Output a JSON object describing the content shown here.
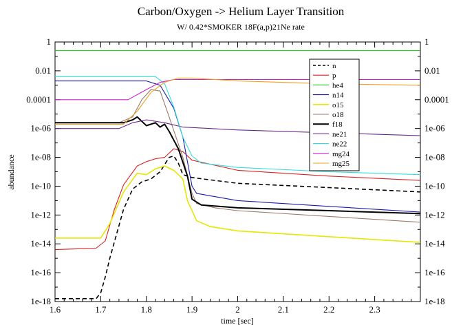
{
  "chart_data": {
    "type": "line",
    "title": "Carbon/Oxygen -> Helium Layer Transition",
    "subtitle": "W/  0.42*SMOKER 18F(a,p)21Ne rate",
    "xlabel": "time [sec]",
    "ylabel": "abundance",
    "xlim": [
      1.6,
      2.4
    ],
    "ylim": [
      1e-18,
      1
    ],
    "yscale": "log",
    "x_ticks": [
      "1.6",
      "1.7",
      "1.8",
      "1.9",
      "2",
      "2.1",
      "2.2",
      "2.3"
    ],
    "y_ticks": [
      "1",
      "0.01",
      "0.0001",
      "1e-06",
      "1e-08",
      "1e-10",
      "1e-12",
      "1e-14",
      "1e-16",
      "1e-18"
    ],
    "right_axis_mirror": true,
    "grid": false,
    "legend_position": "top-right",
    "series": [
      {
        "name": "n",
        "color": "#000000",
        "dash": "6,4",
        "width": 1.6,
        "points": [
          [
            1.6,
            -17.8
          ],
          [
            1.69,
            -17.8
          ],
          [
            1.7,
            -17.4
          ],
          [
            1.71,
            -16.3
          ],
          [
            1.72,
            -15.0
          ],
          [
            1.735,
            -13.3
          ],
          [
            1.75,
            -11.6
          ],
          [
            1.77,
            -10.2
          ],
          [
            1.79,
            -9.7
          ],
          [
            1.81,
            -9.5
          ],
          [
            1.83,
            -9.0
          ],
          [
            1.85,
            -8.0
          ],
          [
            1.86,
            -7.9
          ],
          [
            1.87,
            -8.4
          ],
          [
            1.88,
            -9.2
          ],
          [
            1.9,
            -9.4
          ],
          [
            2.0,
            -9.8
          ],
          [
            2.2,
            -10.1
          ],
          [
            2.4,
            -10.4
          ]
        ]
      },
      {
        "name": "p",
        "color": "#d62020",
        "width": 1.1,
        "points": [
          [
            1.6,
            -14.4
          ],
          [
            1.69,
            -14.3
          ],
          [
            1.71,
            -13.8
          ],
          [
            1.73,
            -11.6
          ],
          [
            1.75,
            -9.9
          ],
          [
            1.78,
            -8.6
          ],
          [
            1.8,
            -8.3
          ],
          [
            1.82,
            -8.1
          ],
          [
            1.84,
            -8.0
          ],
          [
            1.86,
            -7.4
          ],
          [
            1.88,
            -7.6
          ],
          [
            1.9,
            -8.2
          ],
          [
            2.0,
            -8.9
          ],
          [
            2.2,
            -9.3
          ],
          [
            2.4,
            -9.6
          ]
        ]
      },
      {
        "name": "he4",
        "color": "#22cc22",
        "width": 1.1,
        "points": [
          [
            1.6,
            -0.6
          ],
          [
            2.4,
            -0.6
          ]
        ]
      },
      {
        "name": "n14",
        "color": "#1a1aaa",
        "width": 1.1,
        "points": [
          [
            1.6,
            -2.7
          ],
          [
            1.8,
            -2.7
          ],
          [
            1.83,
            -3.0
          ],
          [
            1.86,
            -4.6
          ],
          [
            1.88,
            -6.6
          ],
          [
            1.9,
            -10.0
          ],
          [
            1.91,
            -10.5
          ],
          [
            2.0,
            -11.0
          ],
          [
            2.2,
            -11.4
          ],
          [
            2.4,
            -11.8
          ]
        ]
      },
      {
        "name": "o15",
        "color": "#e6e600",
        "width": 1.6,
        "points": [
          [
            1.6,
            -13.6
          ],
          [
            1.7,
            -13.6
          ],
          [
            1.72,
            -12.6
          ],
          [
            1.75,
            -10.4
          ],
          [
            1.78,
            -9.1
          ],
          [
            1.8,
            -9.2
          ],
          [
            1.82,
            -8.8
          ],
          [
            1.84,
            -8.6
          ],
          [
            1.86,
            -8.9
          ],
          [
            1.88,
            -9.5
          ],
          [
            1.89,
            -11.0
          ],
          [
            1.91,
            -12.4
          ],
          [
            1.94,
            -12.8
          ],
          [
            2.0,
            -13.1
          ],
          [
            2.2,
            -13.5
          ],
          [
            2.4,
            -13.9
          ]
        ]
      },
      {
        "name": "o18",
        "color": "#9a7a6a",
        "width": 1.1,
        "points": [
          [
            1.6,
            -5.6
          ],
          [
            1.74,
            -5.6
          ],
          [
            1.77,
            -5.2
          ],
          [
            1.79,
            -4.0
          ],
          [
            1.81,
            -3.3
          ],
          [
            1.83,
            -3.4
          ],
          [
            1.85,
            -5.2
          ],
          [
            1.88,
            -8.0
          ],
          [
            1.9,
            -10.5
          ],
          [
            1.91,
            -11.2
          ],
          [
            1.95,
            -11.5
          ],
          [
            2.0,
            -11.7
          ],
          [
            2.2,
            -12.1
          ],
          [
            2.4,
            -12.5
          ]
        ]
      },
      {
        "name": "f18",
        "color": "#000000",
        "width": 2.0,
        "points": [
          [
            1.6,
            -5.6
          ],
          [
            1.75,
            -5.6
          ],
          [
            1.77,
            -5.4
          ],
          [
            1.78,
            -5.2
          ],
          [
            1.79,
            -5.5
          ],
          [
            1.8,
            -5.8
          ],
          [
            1.82,
            -5.6
          ],
          [
            1.83,
            -5.9
          ],
          [
            1.84,
            -5.7
          ],
          [
            1.85,
            -6.2
          ],
          [
            1.87,
            -7.4
          ],
          [
            1.89,
            -9.3
          ],
          [
            1.9,
            -10.9
          ],
          [
            1.92,
            -11.3
          ],
          [
            2.0,
            -11.5
          ],
          [
            2.2,
            -11.7
          ],
          [
            2.4,
            -11.9
          ]
        ]
      },
      {
        "name": "ne21",
        "color": "#6a2a88",
        "width": 1.1,
        "points": [
          [
            1.6,
            -6.0
          ],
          [
            1.74,
            -6.0
          ],
          [
            1.77,
            -5.6
          ],
          [
            1.8,
            -5.4
          ],
          [
            1.84,
            -5.6
          ],
          [
            1.88,
            -5.9
          ],
          [
            2.0,
            -6.1
          ],
          [
            2.2,
            -6.3
          ],
          [
            2.4,
            -6.5
          ]
        ]
      },
      {
        "name": "ne22",
        "color": "#33dddd",
        "width": 1.1,
        "points": [
          [
            1.6,
            -2.4
          ],
          [
            1.82,
            -2.4
          ],
          [
            1.84,
            -2.9
          ],
          [
            1.86,
            -4.5
          ],
          [
            1.88,
            -6.6
          ],
          [
            1.9,
            -7.9
          ],
          [
            1.92,
            -8.4
          ],
          [
            2.0,
            -8.7
          ],
          [
            2.2,
            -9.0
          ],
          [
            2.4,
            -9.2
          ]
        ]
      },
      {
        "name": "mg24",
        "color": "#cc22cc",
        "width": 1.1,
        "points": [
          [
            1.6,
            -4.0
          ],
          [
            1.76,
            -4.0
          ],
          [
            1.8,
            -3.3
          ],
          [
            1.83,
            -2.8
          ],
          [
            1.86,
            -2.6
          ],
          [
            1.9,
            -2.6
          ],
          [
            2.4,
            -2.6
          ]
        ]
      },
      {
        "name": "mg25",
        "color": "#f0a020",
        "width": 1.1,
        "points": [
          [
            1.6,
            -5.7
          ],
          [
            1.75,
            -5.7
          ],
          [
            1.78,
            -4.8
          ],
          [
            1.81,
            -3.5
          ],
          [
            1.84,
            -2.8
          ],
          [
            1.87,
            -2.5
          ],
          [
            1.9,
            -2.5
          ],
          [
            2.0,
            -2.7
          ],
          [
            2.2,
            -2.9
          ],
          [
            2.4,
            -3.0
          ]
        ]
      }
    ]
  }
}
